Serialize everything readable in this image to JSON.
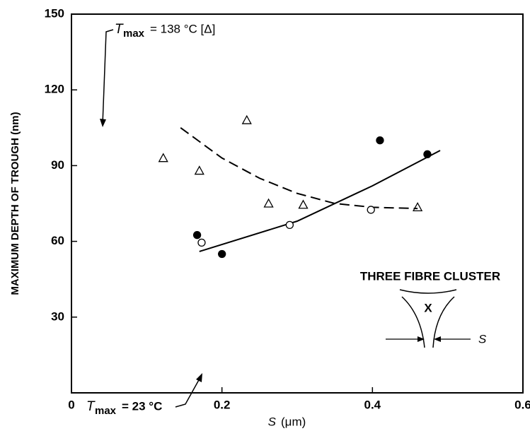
{
  "chart_data": {
    "type": "scatter",
    "xlabel": {
      "symbol": "S",
      "text": "(μm)"
    },
    "ylabel": "MAXIMUM DEPTH OF TROUGH  (nm)",
    "xlim": [
      0,
      0.6
    ],
    "xticks": [
      0,
      0.2,
      0.4,
      0.6
    ],
    "ylim": [
      0,
      150
    ],
    "yticks": [
      30,
      60,
      90,
      120,
      150
    ],
    "series": [
      {
        "marker": "triangle",
        "color": "#000",
        "x": [
          0.122,
          0.17,
          0.233,
          0.262,
          0.308,
          0.46
        ],
        "values": [
          93,
          88,
          108,
          75,
          74.5,
          73.5
        ]
      },
      {
        "marker": "filled-circle",
        "color": "#000",
        "x": [
          0.167,
          0.2,
          0.41,
          0.473
        ],
        "values": [
          62.5,
          55,
          100,
          94.5
        ]
      },
      {
        "marker": "open-circle",
        "color": "#000",
        "x": [
          0.173,
          0.29,
          0.398
        ],
        "values": [
          59.5,
          66.5,
          72.5
        ]
      }
    ],
    "fits": [
      {
        "style": "dashed",
        "color": "#000",
        "x": [
          0.145,
          0.2,
          0.25,
          0.3,
          0.35,
          0.4,
          0.46
        ],
        "values": [
          105,
          93,
          85,
          79,
          75,
          73.5,
          73
        ]
      },
      {
        "style": "solid",
        "color": "#000",
        "x": [
          0.17,
          0.3,
          0.4,
          0.49
        ],
        "values": [
          56,
          68,
          82,
          96
        ]
      }
    ],
    "annotations": [
      {
        "symbol": "T",
        "subscript": "max",
        "text": "= 138 °C [Δ]"
      },
      {
        "symbol": "T",
        "subscript": "max",
        "text": "= 23 °C"
      }
    ],
    "inset": {
      "title": "THREE FIBRE CLUSTER",
      "center": "X",
      "gap": "S"
    }
  }
}
